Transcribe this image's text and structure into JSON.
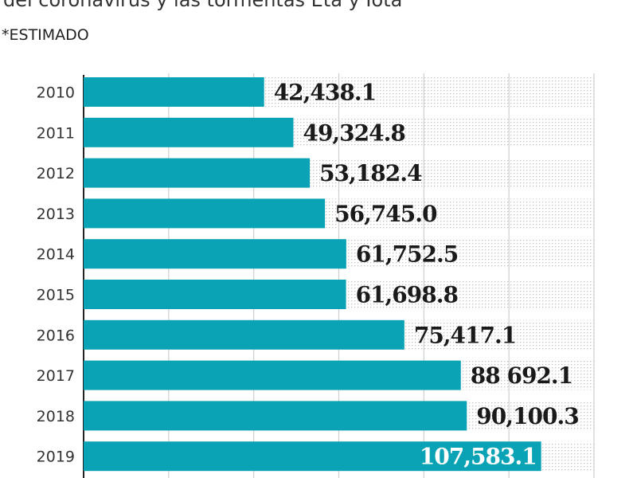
{
  "header": {
    "subtitle": "del coronavirus y las tormentas Eta y Iota",
    "note": "*ESTIMADO"
  },
  "chart_data": {
    "type": "bar",
    "orientation": "horizontal",
    "categories": [
      "2010",
      "2011",
      "2012",
      "2013",
      "2014",
      "2015",
      "2016",
      "2017",
      "2018",
      "2019"
    ],
    "values": [
      42438.1,
      49324.8,
      53182.4,
      56745.0,
      61752.5,
      61698.8,
      75417.1,
      88692.1,
      90100.3,
      107583.1
    ],
    "data_labels": [
      "42,438.1",
      "49,324.8",
      "53,182.4",
      "56,745.0",
      "61,752.5",
      "61,698.8",
      "75,417.1",
      "88 692.1",
      "90,100.3",
      "107,583.1"
    ],
    "xlim": [
      0,
      120000
    ],
    "grid_step": 20000,
    "grid": true,
    "colors": {
      "bar": "#0aa3b5",
      "label": "#1a1a1a",
      "label_inside": "#ffffff",
      "grid": "#cfcfcf",
      "dots": "#bdbdbd"
    }
  }
}
